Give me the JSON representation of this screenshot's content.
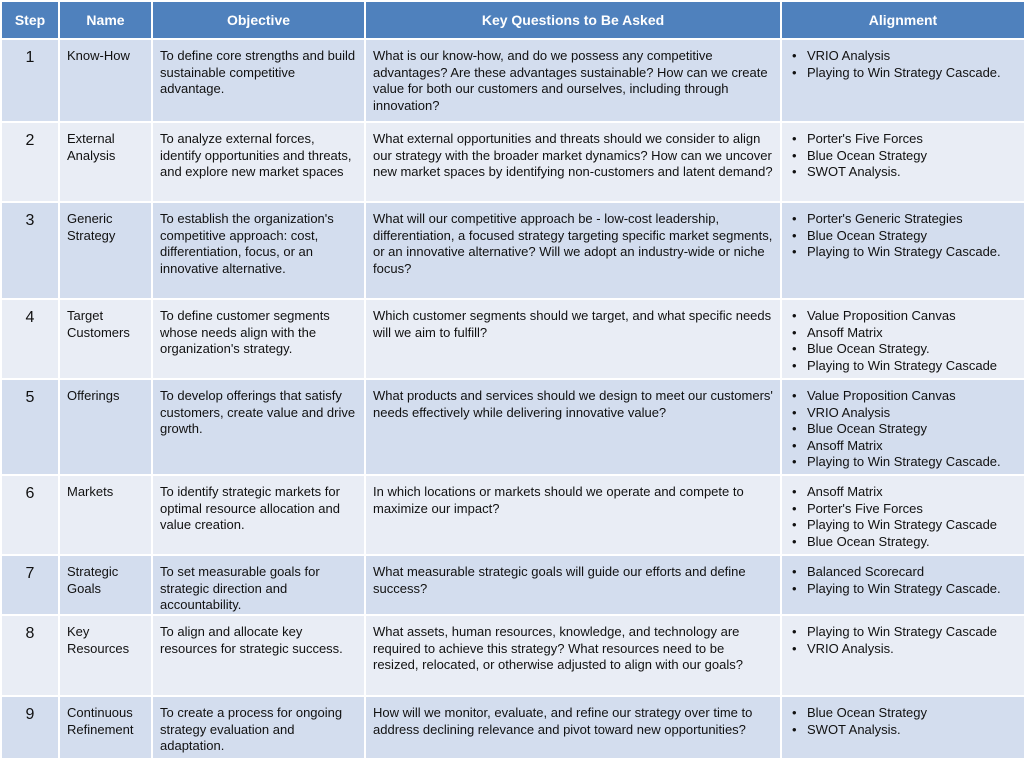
{
  "table": {
    "headers": [
      "Step",
      "Name",
      "Objective",
      "Key Questions  to Be Asked",
      "Alignment"
    ],
    "rows": [
      [
        1,
        "Know-How",
        "To define core strengths and build sustainable competitive advantage.",
        "What is our know-how, and do we possess any competitive advantages? Are these advantages sustainable? How can we create value for both our customers and ourselves, including through innovation?",
        [
          "VRIO Analysis",
          "Playing to Win Strategy Cascade."
        ]
      ],
      [
        2,
        "External Analysis",
        "To analyze external forces, identify opportunities and threats, and explore new market spaces",
        "What external opportunities and threats should we consider to align our strategy with the broader market dynamics? How can we uncover new market spaces by identifying non-customers and latent demand?",
        [
          "Porter's Five Forces",
          "Blue Ocean Strategy",
          "SWOT Analysis."
        ]
      ],
      [
        3,
        "Generic Strategy",
        "To establish the organization's competitive approach: cost, differentiation, focus, or an innovative alternative.",
        "What will our competitive approach be - low-cost leadership, differentiation,  a focused strategy targeting specific market segments, or an innovative alternative?  Will we adopt an industry-wide or niche focus?",
        [
          "Porter's Generic Strategies",
          "Blue Ocean Strategy",
          "Playing to Win Strategy Cascade."
        ]
      ],
      [
        4,
        "Target Customers",
        "To define customer segments whose needs align with the organization's strategy.",
        "Which customer segments should we target, and what specific needs will we aim to fulfill?",
        [
          "Value  Proposition Canvas",
          "Ansoff Matrix",
          "Blue Ocean Strategy.",
          "Playing to Win Strategy Cascade"
        ]
      ],
      [
        5,
        "Offerings",
        "To develop offerings that satisfy customers, create value and drive growth.",
        "What products and services should we design to meet our customers' needs effectively while delivering innovative value?",
        [
          "Value  Proposition Canvas",
          "VRIO Analysis",
          "Blue Ocean Strategy",
          "Ansoff Matrix",
          "Playing to Win Strategy Cascade."
        ]
      ],
      [
        6,
        "Markets",
        "To identify strategic markets for optimal resource allocation and value creation.",
        "In which locations or markets should we operate and compete to maximize our impact?",
        [
          "Ansoff Matrix",
          "Porter's Five Forces",
          "Playing to Win Strategy Cascade",
          "Blue Ocean Strategy."
        ]
      ],
      [
        7,
        "Strategic Goals",
        "To set measurable goals for strategic direction and accountability.",
        "What measurable strategic goals will guide our efforts and define success?",
        [
          "Balanced Scorecard",
          "Playing to Win Strategy Cascade."
        ]
      ],
      [
        8,
        "Key Resources",
        "To align and allocate key resources for strategic success.",
        "What assets, human resources, knowledge, and technology are required to achieve this strategy? What resources need to be resized, relocated, or otherwise adjusted to align with our goals?",
        [
          "Playing to Win Strategy Cascade",
          "VRIO Analysis."
        ]
      ],
      [
        9,
        "Continuous Refinement",
        "To create a process for ongoing strategy evaluation and adaptation.",
        "How will we monitor, evaluate, and refine our strategy over time to address declining relevance and pivot toward new opportunities?",
        [
          "Blue Ocean Strategy",
          "SWOT Analysis."
        ]
      ]
    ]
  }
}
